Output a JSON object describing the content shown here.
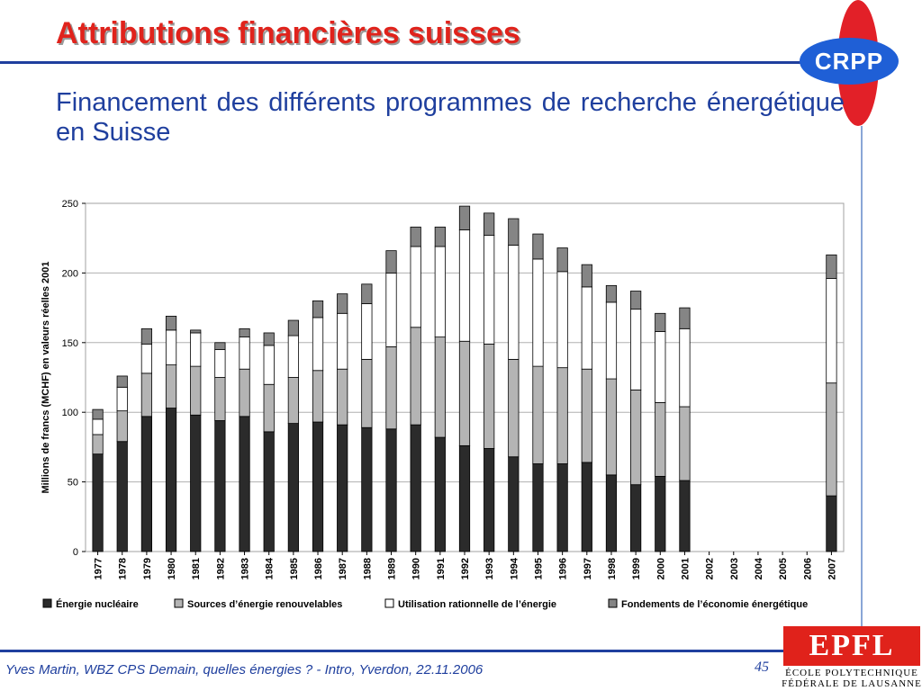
{
  "slide": {
    "title": "Attributions financières suisses",
    "subtitle": "Financement des différents programmes de recherche énergétique en Suisse",
    "footer": "Yves Martin, WBZ CPS Demain, quelles énergies ? - Intro, Yverdon, 22.11.2006",
    "page_number": "45"
  },
  "logos": {
    "crpp": "CRPP",
    "epfl": "EPFL",
    "epfl_line1": "ÉCOLE POLYTECHNIQUE",
    "epfl_line2": "FÉDÉRALE DE LAUSANNE"
  },
  "colors": {
    "title": "#e0231c",
    "text": "#1f3f9e",
    "rule": "#1f3f9e"
  },
  "chart_data": {
    "type": "bar",
    "stacked": true,
    "ylabel": "Millions de francs (MCHF) en valeurs réelles 2001",
    "ylim": [
      0,
      250
    ],
    "yticks": [
      0,
      50,
      100,
      150,
      200,
      250
    ],
    "grid": true,
    "legend_position": "bottom",
    "categories": [
      "1977",
      "1978",
      "1979",
      "1980",
      "1981",
      "1982",
      "1983",
      "1984",
      "1985",
      "1986",
      "1987",
      "1988",
      "1989",
      "1990",
      "1991",
      "1992",
      "1993",
      "1994",
      "1995",
      "1996",
      "1997",
      "1998",
      "1999",
      "2000",
      "2001",
      "2002",
      "2003",
      "2004",
      "2005",
      "2006",
      "2007"
    ],
    "series": [
      {
        "name": "Énergie nucléaire",
        "color": "#2b2b2b",
        "values": [
          70,
          79,
          97,
          103,
          98,
          94,
          97,
          86,
          92,
          93,
          91,
          89,
          88,
          91,
          82,
          76,
          74,
          68,
          63,
          63,
          64,
          55,
          48,
          54,
          51,
          0,
          0,
          0,
          0,
          0,
          40
        ]
      },
      {
        "name": "Sources d’énergie renouvelables",
        "color": "#b4b4b4",
        "values": [
          14,
          22,
          31,
          31,
          35,
          31,
          34,
          34,
          33,
          37,
          40,
          49,
          59,
          70,
          72,
          75,
          75,
          70,
          70,
          69,
          67,
          69,
          68,
          53,
          53,
          0,
          0,
          0,
          0,
          0,
          81
        ]
      },
      {
        "name": "Utilisation rationnelle de l’énergie",
        "color": "#ffffff",
        "values": [
          11,
          17,
          21,
          25,
          24,
          20,
          23,
          28,
          30,
          38,
          40,
          40,
          53,
          58,
          65,
          80,
          78,
          82,
          77,
          69,
          59,
          55,
          58,
          51,
          56,
          0,
          0,
          0,
          0,
          0,
          75
        ]
      },
      {
        "name": "Fondements de l’économie énergétique",
        "color": "#858585",
        "values": [
          7,
          8,
          11,
          10,
          2,
          5,
          6,
          9,
          11,
          12,
          14,
          14,
          16,
          14,
          14,
          17,
          16,
          19,
          18,
          17,
          16,
          12,
          13,
          13,
          15,
          0,
          0,
          0,
          0,
          0,
          17
        ]
      }
    ]
  }
}
